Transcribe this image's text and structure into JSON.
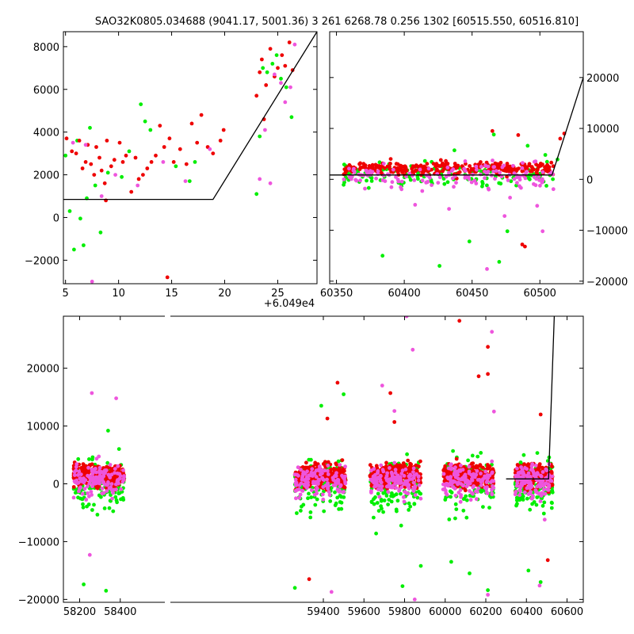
{
  "title": "SAO32K0805.034688 (9041.17, 5001.36)   3 261 6268.78 0.256 1302 [60515.550, 60516.810]",
  "colors": {
    "green": "#00ee00",
    "red": "#ee0000",
    "pink": "#ee55dd",
    "line": "#000000"
  },
  "chart_data": [
    {
      "type": "scatter",
      "panel": "zoom-tail",
      "x_offset_label": "+6.049e4",
      "xlim": [
        4.8,
        28.7
      ],
      "ylim": [
        -3100,
        8700
      ],
      "xticks": [
        5,
        10,
        15,
        20,
        25
      ],
      "yticks": [
        -2000,
        0,
        2000,
        4000,
        6000,
        8000
      ],
      "y_axis_side": "left",
      "model_line": [
        [
          4.8,
          850
        ],
        [
          18.9,
          850
        ],
        [
          28.7,
          8700
        ]
      ],
      "series": [
        {
          "color": "red",
          "points": [
            [
              5.1,
              3700
            ],
            [
              5.6,
              3100
            ],
            [
              6.0,
              3000
            ],
            [
              6.3,
              3600
            ],
            [
              6.6,
              2300
            ],
            [
              6.9,
              2600
            ],
            [
              7.1,
              3400
            ],
            [
              7.4,
              2500
            ],
            [
              7.7,
              2000
            ],
            [
              7.9,
              3300
            ],
            [
              8.2,
              2800
            ],
            [
              8.4,
              2200
            ],
            [
              8.7,
              1600
            ],
            [
              8.9,
              3600
            ],
            [
              9.3,
              2400
            ],
            [
              9.6,
              2700
            ],
            [
              10.1,
              3500
            ],
            [
              10.4,
              2600
            ],
            [
              10.7,
              2900
            ],
            [
              11.2,
              1200
            ],
            [
              11.6,
              2800
            ],
            [
              11.9,
              1800
            ],
            [
              12.3,
              2000
            ],
            [
              12.7,
              2300
            ],
            [
              13.1,
              2600
            ],
            [
              13.5,
              2900
            ],
            [
              13.9,
              4300
            ],
            [
              14.3,
              3300
            ],
            [
              14.8,
              3700
            ],
            [
              15.2,
              2600
            ],
            [
              15.8,
              3200
            ],
            [
              16.4,
              2500
            ],
            [
              16.9,
              4400
            ],
            [
              17.4,
              3500
            ],
            [
              17.8,
              4800
            ],
            [
              18.4,
              3300
            ],
            [
              18.9,
              3000
            ],
            [
              19.6,
              3600
            ],
            [
              19.9,
              4100
            ],
            [
              23.0,
              5700
            ],
            [
              23.3,
              6800
            ],
            [
              23.5,
              7400
            ],
            [
              23.9,
              6200
            ],
            [
              24.3,
              7900
            ],
            [
              24.7,
              6600
            ],
            [
              25.0,
              7000
            ],
            [
              25.4,
              7600
            ],
            [
              25.7,
              7100
            ],
            [
              26.1,
              8200
            ],
            [
              26.4,
              6900
            ],
            [
              8.8,
              800
            ],
            [
              14.6,
              -2800
            ],
            [
              23.7,
              4600
            ]
          ]
        },
        {
          "color": "green",
          "points": [
            [
              5.0,
              2900
            ],
            [
              5.4,
              300
            ],
            [
              5.8,
              -1500
            ],
            [
              6.1,
              3600
            ],
            [
              6.4,
              -50
            ],
            [
              6.7,
              -1300
            ],
            [
              7.0,
              900
            ],
            [
              7.3,
              4200
            ],
            [
              7.8,
              1500
            ],
            [
              8.3,
              -700
            ],
            [
              9.0,
              2100
            ],
            [
              10.3,
              1900
            ],
            [
              11.0,
              3100
            ],
            [
              12.1,
              5300
            ],
            [
              12.5,
              4500
            ],
            [
              13.0,
              4100
            ],
            [
              15.4,
              2400
            ],
            [
              16.7,
              1700
            ],
            [
              17.2,
              2600
            ],
            [
              23.0,
              1100
            ],
            [
              23.3,
              3800
            ],
            [
              23.6,
              7000
            ],
            [
              24.0,
              6800
            ],
            [
              24.5,
              7200
            ],
            [
              24.9,
              7600
            ],
            [
              25.3,
              6500
            ],
            [
              25.8,
              6100
            ],
            [
              26.3,
              4700
            ]
          ]
        },
        {
          "color": "pink",
          "points": [
            [
              5.7,
              3500
            ],
            [
              6.9,
              3400
            ],
            [
              7.5,
              -3000
            ],
            [
              8.4,
              1000
            ],
            [
              9.7,
              2000
            ],
            [
              11.8,
              1500
            ],
            [
              14.2,
              2600
            ],
            [
              16.3,
              1700
            ],
            [
              18.6,
              3200
            ],
            [
              23.3,
              1800
            ],
            [
              23.8,
              4100
            ],
            [
              24.3,
              1600
            ],
            [
              24.7,
              6700
            ],
            [
              25.3,
              6300
            ],
            [
              25.7,
              5400
            ],
            [
              26.2,
              6100
            ],
            [
              26.6,
              8100
            ]
          ]
        }
      ]
    },
    {
      "type": "scatter",
      "panel": "zoom-last-season",
      "xlim": [
        60345,
        60532
      ],
      "ylim": [
        -20500,
        29000
      ],
      "xticks": [
        60350,
        60400,
        60450,
        60500
      ],
      "yticks": [
        -20000,
        -10000,
        0,
        10000,
        20000
      ],
      "y_axis_side": "right",
      "model_line": [
        [
          60345,
          850
        ],
        [
          60509,
          850
        ],
        [
          60532,
          20000
        ]
      ],
      "series": [
        {
          "color": "red",
          "density": 1.0,
          "points": [
            [
              60367,
              3000
            ],
            [
              60390,
              4000
            ],
            [
              60427,
              3800
            ],
            [
              60465,
              9500
            ],
            [
              60484,
              8700
            ],
            [
              60487,
              -12800
            ],
            [
              60489,
              -13200
            ],
            [
              60515,
              8000
            ],
            [
              60518,
              9000
            ]
          ]
        },
        {
          "color": "green",
          "density": 0.45,
          "points": [
            [
              60384,
              -15000
            ],
            [
              60426,
              -17000
            ],
            [
              60437,
              5700
            ],
            [
              60448,
              -12200
            ],
            [
              60470,
              -16200
            ],
            [
              60476,
              -10200
            ],
            [
              60466,
              8800
            ],
            [
              60491,
              6600
            ],
            [
              60504,
              4800
            ],
            [
              60513,
              3900
            ]
          ]
        },
        {
          "color": "pink",
          "density": 0.45,
          "points": [
            [
              60461,
              -17600
            ],
            [
              60474,
              -7200
            ],
            [
              60478,
              -3600
            ],
            [
              60498,
              -5200
            ],
            [
              60502,
              -10200
            ],
            [
              60408,
              -5000
            ],
            [
              60433,
              -5800
            ]
          ]
        }
      ]
    },
    {
      "type": "scatter",
      "panel": "full-light-curve",
      "xlim": [
        58120,
        60680
      ],
      "ylim": [
        -20500,
        29000
      ],
      "xticks": [
        58200,
        58400,
        59400,
        59600,
        59800,
        60000,
        60200,
        60400,
        60600
      ],
      "yticks": [
        -20000,
        -10000,
        0,
        10000,
        20000
      ],
      "y_axis_side": "left",
      "model_line": [
        [
          60300,
          850
        ],
        [
          60509,
          850
        ],
        [
          60537,
          29000
        ]
      ],
      "seasons": [
        [
          58170,
          58420
        ],
        [
          59260,
          59510
        ],
        [
          59630,
          59880
        ],
        [
          59990,
          60240
        ],
        [
          60345,
          60530
        ]
      ],
      "series": [
        {
          "color": "red",
          "density": 1.0,
          "points": [
            [
              59420,
              11300
            ],
            [
              59470,
              17500
            ],
            [
              59730,
              15700
            ],
            [
              59750,
              10700
            ],
            [
              60070,
              28200
            ],
            [
              60210,
              23700
            ],
            [
              60210,
              19000
            ],
            [
              60165,
              18600
            ],
            [
              60470,
              12000
            ],
            [
              60505,
              -13200
            ],
            [
              59330,
              -16500
            ]
          ]
        },
        {
          "color": "green",
          "density": 0.5,
          "points": [
            [
              58220,
              -17400
            ],
            [
              58330,
              -18500
            ],
            [
              58340,
              9200
            ],
            [
              59260,
              -18000
            ],
            [
              59390,
              13500
            ],
            [
              59500,
              15500
            ],
            [
              59660,
              -8600
            ],
            [
              59790,
              -17700
            ],
            [
              59880,
              -14200
            ],
            [
              60030,
              -13500
            ],
            [
              60120,
              -15500
            ],
            [
              60210,
              -18400
            ],
            [
              60410,
              -15000
            ],
            [
              60470,
              -17000
            ]
          ]
        },
        {
          "color": "pink",
          "density": 0.5,
          "points": [
            [
              58260,
              15700
            ],
            [
              58380,
              14800
            ],
            [
              58250,
              -12300
            ],
            [
              59440,
              -18700
            ],
            [
              59690,
              17000
            ],
            [
              59810,
              29000
            ],
            [
              59840,
              23200
            ],
            [
              59750,
              12600
            ],
            [
              59850,
              -20000
            ],
            [
              60230,
              26300
            ],
            [
              60240,
              12500
            ],
            [
              60210,
              -19200
            ],
            [
              60465,
              -17600
            ],
            [
              60490,
              -6200
            ]
          ]
        }
      ]
    }
  ]
}
